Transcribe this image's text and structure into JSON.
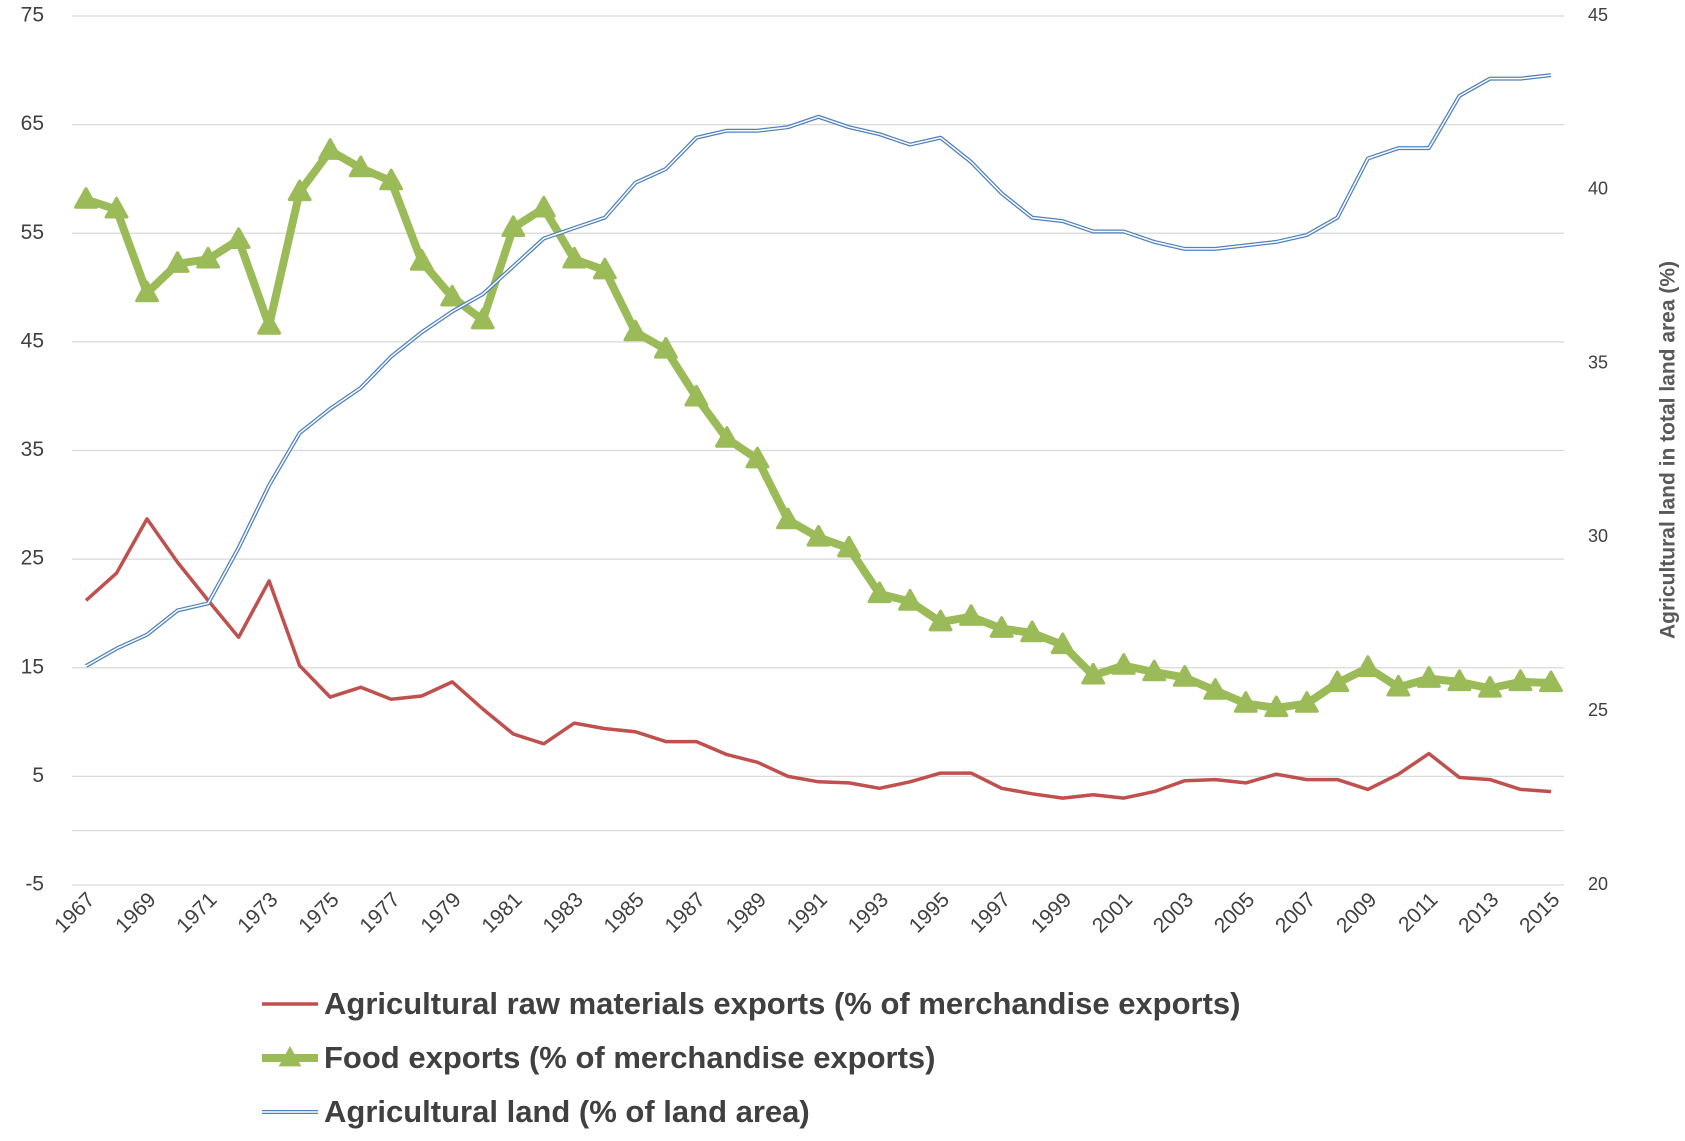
{
  "chart_data": {
    "type": "line",
    "y2label": "Agricultural land in total land area (%)",
    "categories": [
      "1967",
      null,
      "1969",
      null,
      "1971",
      null,
      "1973",
      null,
      "1975",
      null,
      "1977",
      null,
      "1979",
      null,
      "1981",
      null,
      "1983",
      null,
      "1985",
      null,
      "1987",
      null,
      "1989",
      null,
      "1991",
      null,
      "1993",
      null,
      "1995",
      null,
      "1997",
      null,
      "1999",
      null,
      "2001",
      null,
      "2003",
      null,
      "2005",
      null,
      "2007",
      null,
      "2009",
      null,
      "2011",
      null,
      "2013",
      null,
      "2015"
    ],
    "ylim": [
      -5,
      75
    ],
    "yticks": [
      -5,
      5,
      15,
      25,
      35,
      45,
      55,
      65,
      75
    ],
    "y2lim": [
      20,
      45
    ],
    "y2ticks": [
      20,
      25,
      30,
      35,
      40,
      45
    ],
    "grid": true,
    "legend": "bottom",
    "series": [
      {
        "name": "Agricultural raw materials exports (% of merchandise exports)",
        "color": "#c0504d",
        "style": "line",
        "values": [
          21.2,
          23.7,
          28.7,
          24.7,
          21.2,
          17.8,
          23.0,
          15.2,
          12.3,
          13.2,
          12.1,
          12.4,
          13.7,
          11.2,
          8.9,
          8.0,
          9.9,
          9.4,
          9.1,
          8.2,
          8.2,
          7.0,
          6.3,
          5.0,
          4.5,
          4.4,
          3.9,
          4.5,
          5.3,
          5.3,
          3.9,
          3.4,
          3.0,
          3.3,
          3.0,
          3.6,
          4.6,
          4.7,
          4.4,
          5.2,
          4.7,
          4.7,
          3.8,
          5.2,
          7.1,
          4.9,
          4.7,
          3.8,
          3.6
        ]
      },
      {
        "name": "Food exports (% of merchandise exports)",
        "color": "#9bbb59",
        "style": "triangle",
        "values": [
          58.1,
          57.2,
          49.5,
          52.2,
          52.6,
          54.4,
          46.5,
          58.8,
          62.6,
          61.0,
          59.8,
          52.4,
          49.1,
          47.0,
          55.5,
          57.3,
          52.6,
          51.6,
          45.9,
          44.3,
          39.9,
          36.1,
          34.2,
          28.6,
          27.0,
          26.0,
          21.8,
          21.1,
          19.2,
          19.7,
          18.6,
          18.2,
          17.1,
          14.3,
          15.2,
          14.6,
          14.1,
          12.9,
          11.7,
          11.3,
          11.7,
          13.6,
          15.0,
          13.2,
          14.0,
          13.7,
          13.1,
          13.7,
          13.6
        ]
      },
      {
        "name": "Agricultural land (% of land area)",
        "color": "#4f81bd",
        "style": "double",
        "axis": "y2",
        "values": [
          26.3,
          26.8,
          27.2,
          27.9,
          28.1,
          29.7,
          31.5,
          33.0,
          33.7,
          34.3,
          35.2,
          35.9,
          36.5,
          37.0,
          37.8,
          38.6,
          38.9,
          39.2,
          40.2,
          40.6,
          41.5,
          41.7,
          41.7,
          41.8,
          42.1,
          41.8,
          41.6,
          41.3,
          41.5,
          40.8,
          39.9,
          39.2,
          39.1,
          38.8,
          38.8,
          38.5,
          38.3,
          38.3,
          38.4,
          38.5,
          38.7,
          39.2,
          40.9,
          41.2,
          41.2,
          42.7,
          43.2,
          43.2,
          43.3
        ]
      }
    ]
  }
}
